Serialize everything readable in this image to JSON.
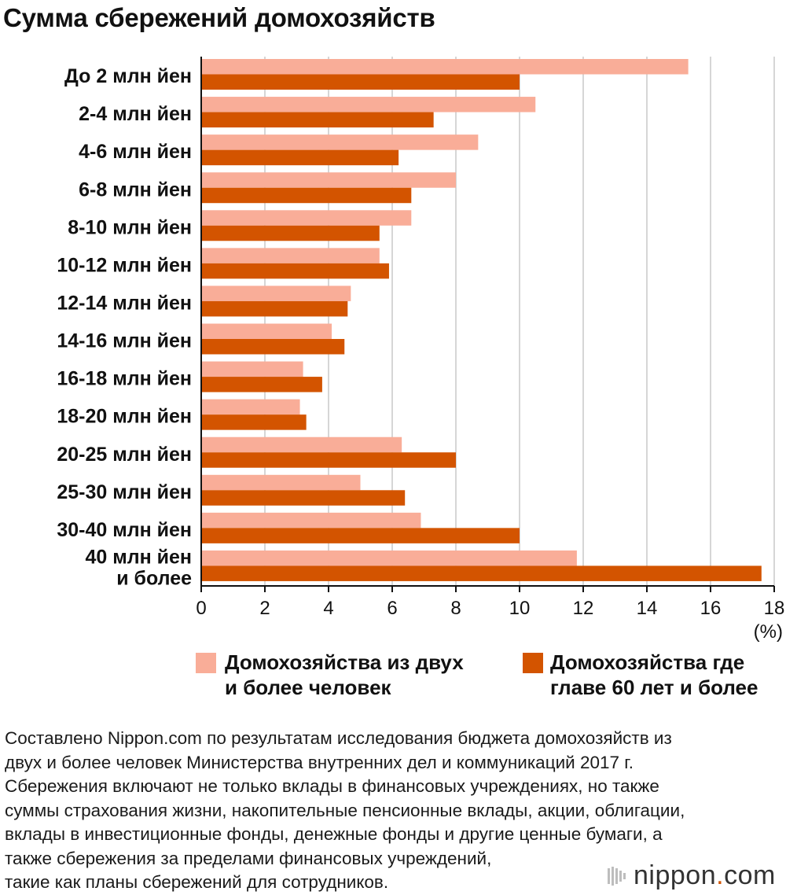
{
  "title": "Сумма сбережений домохозяйств",
  "chart_data": {
    "type": "bar",
    "orientation": "horizontal",
    "title": "Сумма сбережений домохозяйств",
    "categories": [
      "До 2 млн йен",
      "2-4 млн йен",
      "4-6 млн йен",
      "6-8 млн йен",
      "8-10 млн йен",
      "10-12 млн йен",
      "12-14 млн йен",
      "14-16 млн йен",
      "16-18 млн йен",
      "18-20 млн йен",
      "20-25 млн йен",
      "25-30 млн йен",
      "30-40 млн йен",
      "40 млн йен\nи более"
    ],
    "series": [
      {
        "name": "Домохозяйства из двух и более человек",
        "color": "#f9ad98",
        "values": [
          15.3,
          10.5,
          8.7,
          8.0,
          6.6,
          5.6,
          4.7,
          4.1,
          3.2,
          3.1,
          6.3,
          5.0,
          6.9,
          11.8
        ]
      },
      {
        "name": "Домохозяйства где главе 60 лет и более",
        "color": "#d35400",
        "values": [
          10.0,
          7.3,
          6.2,
          6.6,
          5.6,
          5.9,
          4.6,
          4.5,
          3.8,
          3.3,
          8.0,
          6.4,
          10.0,
          17.6
        ]
      }
    ],
    "xlim": [
      0,
      18
    ],
    "xticks": [
      0,
      2,
      4,
      6,
      8,
      10,
      12,
      14,
      16,
      18
    ],
    "xunit": "(%)",
    "grid": true
  },
  "legend": [
    {
      "line1": "Домохозяйства из двух",
      "line2": "и более человек",
      "color": "#f9ad98"
    },
    {
      "line1": "Домохозяйства где",
      "line2": "главе 60 лет и более",
      "color": "#d35400"
    }
  ],
  "note": {
    "lines": [
      "Составлено Nippon.com по результатам исследования бюджета домохозяйств из",
      "двух и более человек Министерства внутренних дел и коммуникаций 2017 г.",
      "Сбережения включают не только вклады в финансовых учреждениях, но также",
      "суммы страхования жизни, накопительные пенсионные вклады, акции, облигации,",
      "вклады в инвестиционные фонды, денежные фонды и другие ценные бумаги, а",
      "также сбережения за пределами финансовых учреждений,",
      "такие как планы сбережений для сотрудников."
    ]
  },
  "logo": {
    "name": "nippon",
    "dot": ".",
    "suffix": "com"
  }
}
